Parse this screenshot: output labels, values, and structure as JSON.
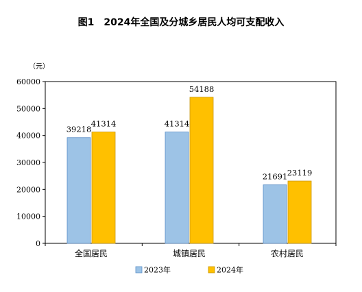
{
  "chart_data": {
    "type": "bar",
    "title": "图1　2024年全国及分城乡居民人均可支配收入",
    "unit_label": "（元）",
    "categories": [
      "全国居民",
      "城镇居民",
      "农村居民"
    ],
    "series": [
      {
        "name": "2023年",
        "values": [
          39218,
          41314,
          21691
        ],
        "color": "#9dc3e6",
        "stroke": "#5b8fc7"
      },
      {
        "name": "2024年",
        "values": [
          41314,
          54188,
          23119
        ],
        "color": "#ffc000",
        "stroke": "#c99500"
      }
    ],
    "ylim": [
      0,
      60000
    ],
    "yticks": [
      0,
      10000,
      20000,
      30000,
      40000,
      50000,
      60000
    ],
    "grid": false,
    "legend_position": "bottom"
  }
}
